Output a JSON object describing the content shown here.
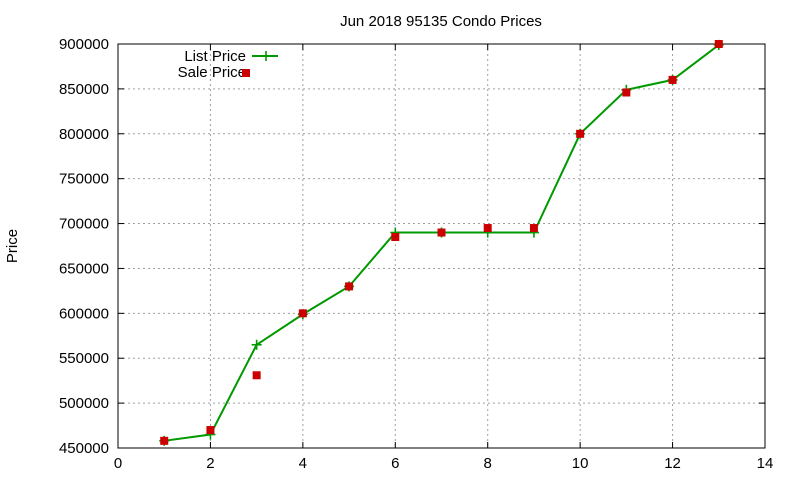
{
  "chart_data": {
    "type": "line",
    "title": "Jun 2018 95135 Condo Prices",
    "xlabel": "",
    "ylabel": "Price",
    "xlim": [
      0,
      14
    ],
    "ylim": [
      450000,
      900000
    ],
    "x_ticks": [
      0,
      2,
      4,
      6,
      8,
      10,
      12,
      14
    ],
    "y_ticks": [
      450000,
      500000,
      550000,
      600000,
      650000,
      700000,
      750000,
      800000,
      850000,
      900000
    ],
    "grid": true,
    "legend_position": "top-left",
    "series": [
      {
        "name": "List Price",
        "style": "linespoints",
        "marker": "plus",
        "color": "#009900",
        "x": [
          1,
          2,
          3,
          4,
          5,
          6,
          7,
          8,
          9,
          10,
          11,
          12,
          13
        ],
        "y": [
          458000,
          465000,
          565000,
          599000,
          630000,
          690000,
          690000,
          690000,
          690000,
          800000,
          849000,
          860000,
          899000
        ]
      },
      {
        "name": "Sale Price",
        "style": "points",
        "marker": "square",
        "color": "#cc0000",
        "x": [
          1,
          2,
          3,
          4,
          5,
          6,
          7,
          8,
          9,
          10,
          11,
          12,
          13
        ],
        "y": [
          458000,
          470000,
          531000,
          600000,
          630000,
          685000,
          690000,
          695000,
          695000,
          800000,
          846000,
          860000,
          900000
        ]
      }
    ]
  }
}
